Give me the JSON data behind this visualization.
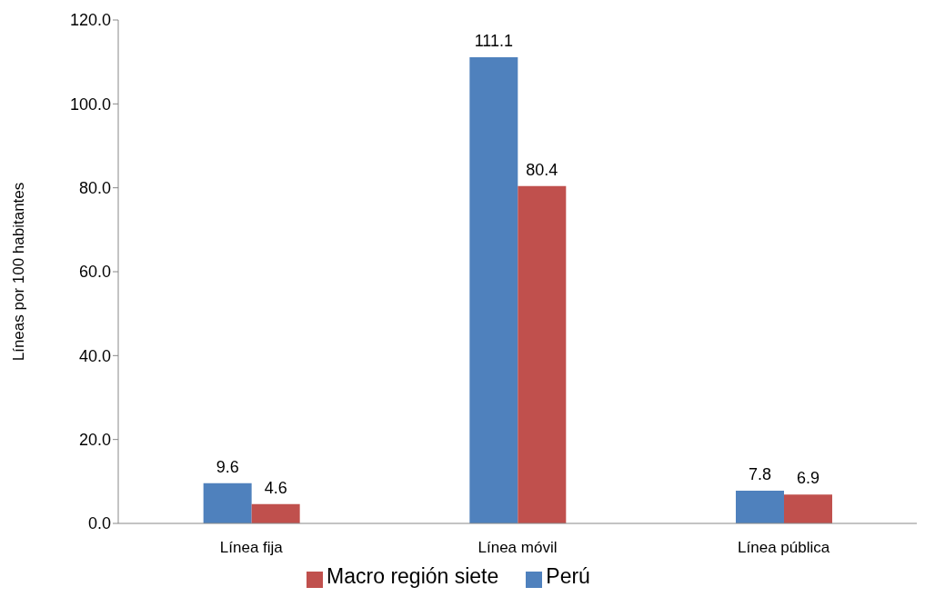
{
  "chart_data": {
    "type": "bar",
    "ylabel": "Líneas por 100 habitantes",
    "categories": [
      "Línea fija",
      "Línea móvil",
      "Línea pública"
    ],
    "series": [
      {
        "name": "Perú",
        "color": "#4f81bd",
        "values": [
          9.6,
          111.1,
          7.8
        ]
      },
      {
        "name": "Macro región siete",
        "color": "#c0504d",
        "values": [
          4.6,
          80.4,
          6.9
        ]
      }
    ],
    "ylim": [
      0,
      120
    ],
    "yticks": [
      {
        "value": 0,
        "label": "0.0"
      },
      {
        "value": 20,
        "label": "20.0"
      },
      {
        "value": 40,
        "label": "40.0"
      },
      {
        "value": 60,
        "label": "60.0"
      },
      {
        "value": 80,
        "label": "80.0"
      },
      {
        "value": 100,
        "label": "100.0"
      },
      {
        "value": 120,
        "label": "120.0"
      }
    ],
    "data_labels": true,
    "grid": false,
    "legend": "bottom"
  }
}
